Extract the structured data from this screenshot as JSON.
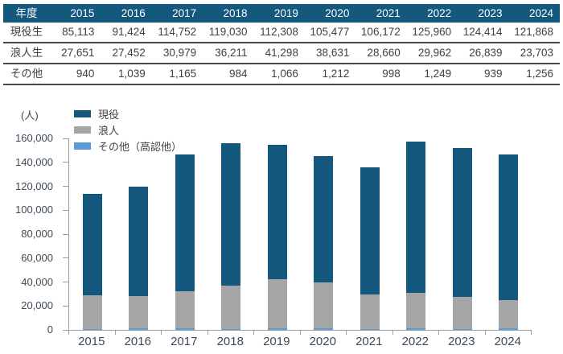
{
  "colors": {
    "primary": "#14587D",
    "gray": "#A6A6A6",
    "light_blue": "#5B9BD5",
    "axis_line": "#999FA4",
    "axis_text": "#3E4A57",
    "table_text": "#3F3F3F",
    "table_separator": "#404B55",
    "header_text": "#FFFFFF"
  },
  "table": {
    "header": [
      "年度",
      "2015",
      "2016",
      "2017",
      "2018",
      "2019",
      "2020",
      "2021",
      "2022",
      "2023",
      "2024"
    ],
    "rows": [
      {
        "label": "現役生",
        "values": [
          "85,113",
          "91,424",
          "114,752",
          "119,030",
          "112,308",
          "105,477",
          "106,172",
          "125,960",
          "124,414",
          "121,868"
        ]
      },
      {
        "label": "浪人生",
        "values": [
          "27,651",
          "27,452",
          "30,979",
          "36,211",
          "41,298",
          "38,631",
          "28,660",
          "29,962",
          "26,839",
          "23,703"
        ]
      },
      {
        "label": "その他",
        "values": [
          "940",
          "1,039",
          "1,165",
          "984",
          "1,066",
          "1,212",
          "998",
          "1,249",
          "939",
          "1,256"
        ]
      }
    ]
  },
  "chart_data": {
    "type": "bar",
    "stacked": true,
    "unit_label": "(人)",
    "categories": [
      "2015",
      "2016",
      "2017",
      "2018",
      "2019",
      "2020",
      "2021",
      "2022",
      "2023",
      "2024"
    ],
    "series": [
      {
        "name": "現役",
        "color": "primary",
        "values": [
          85113,
          91424,
          114752,
          119030,
          112308,
          105477,
          106172,
          125960,
          124414,
          121868
        ]
      },
      {
        "name": "浪人",
        "color": "gray",
        "values": [
          27651,
          27452,
          30979,
          36211,
          41298,
          38631,
          28660,
          29962,
          26839,
          23703
        ]
      },
      {
        "name": "その他（高認他）",
        "color": "light_blue",
        "values": [
          940,
          1039,
          1165,
          984,
          1066,
          1212,
          998,
          1249,
          939,
          1256
        ]
      }
    ],
    "stack_order_bottom_to_top": [
      "その他（高認他）",
      "浪人",
      "現役"
    ],
    "ylim": [
      0,
      160000
    ],
    "ytick_step": 20000,
    "grid": false,
    "legend_position": "top-left"
  }
}
